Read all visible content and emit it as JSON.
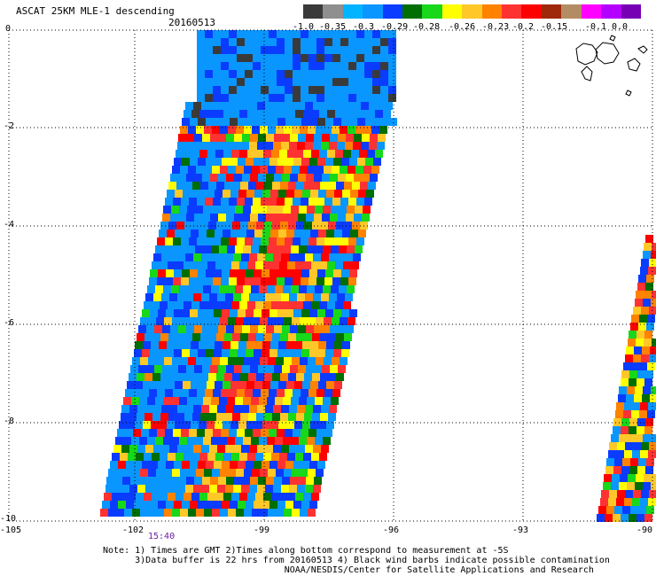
{
  "title": "ASCAT 25KM MLE-1 descending",
  "date": "20160513",
  "time_label": "15:40",
  "legend": {
    "colors": [
      "#3a3a3a",
      "#8f8f8f",
      "#00b4ff",
      "#0a96ff",
      "#0a3cff",
      "#006e00",
      "#19d719",
      "#ffff00",
      "#ffc828",
      "#ff8200",
      "#ff3232",
      "#ff0000",
      "#a0280a",
      "#b48c64",
      "#ff00ff",
      "#b400ff",
      "#7800b4"
    ],
    "labels": [
      "-1.0",
      "-0.35",
      "-0.3",
      "-0.29",
      "-0.28",
      "-0.26",
      "-0.23",
      "-0.2",
      "-0.15",
      "-0.1",
      "0.0"
    ]
  },
  "axes": {
    "lat_labels": [
      "0",
      "-2",
      "-4",
      "-6",
      "-8",
      "-10"
    ],
    "lon_labels": [
      "-105",
      "-102",
      "-99",
      "-96",
      "-93",
      "-90"
    ]
  },
  "notes": [
    "Note: 1) Times are GMT 2)Times along bottom correspond to measurement at -5S",
    "      3)Data buffer is 22 hrs from 20160513 4) Black wind barbs indicate possible contamination",
    "                                  NOAA/NESDIS/Center for Satellite Applications and Research"
  ]
}
